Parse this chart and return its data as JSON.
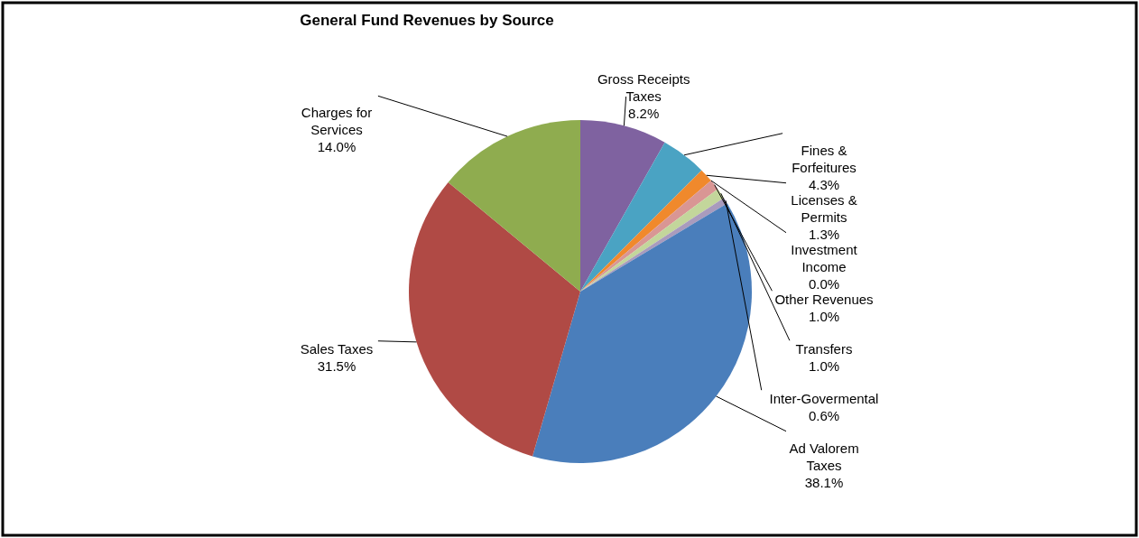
{
  "chart_data": {
    "type": "pie",
    "title": "General Fund Revenues by Source",
    "categories": [
      "Gross Receipts Taxes",
      "Fines & Forfeitures",
      "Licenses & Permits",
      "Investment Income",
      "Other Revenues",
      "Transfers",
      "Inter-Govermental",
      "Ad Valorem Taxes",
      "Sales Taxes",
      "Charges for Services"
    ],
    "values": [
      8.2,
      4.3,
      1.3,
      0.0,
      1.0,
      1.0,
      0.6,
      38.1,
      31.5,
      14.0
    ],
    "value_labels": [
      "8.2%",
      "4.3%",
      "1.3%",
      "0.0%",
      "1.0%",
      "1.0%",
      "0.6%",
      "38.1%",
      "31.5%",
      "14.0%"
    ],
    "colors": [
      "#7f62a0",
      "#4aa3c3",
      "#f0892c",
      "#2c4d75",
      "#d99694",
      "#c3d69b",
      "#a99bbd",
      "#4a7ebb",
      "#b04a45",
      "#8fac4f"
    ]
  }
}
